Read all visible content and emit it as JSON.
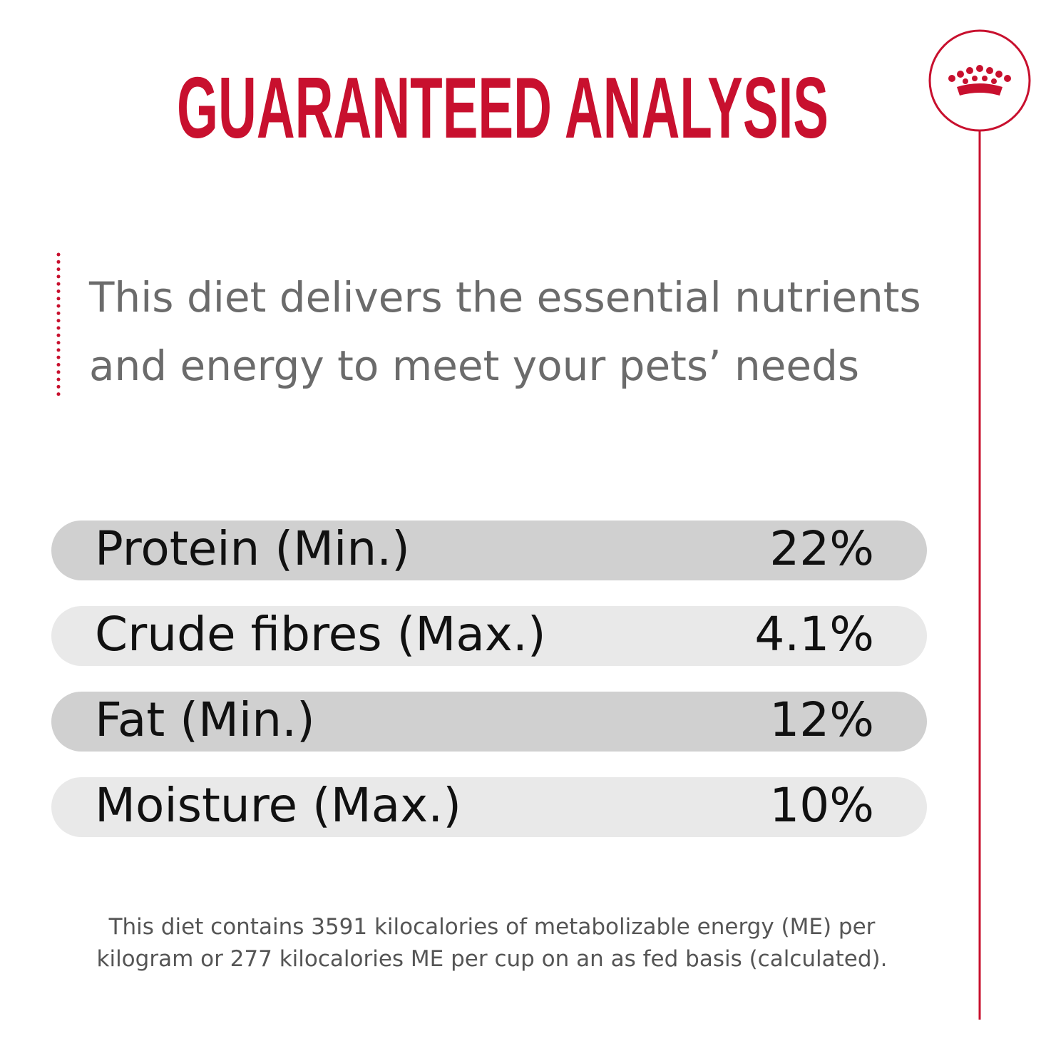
{
  "header": {
    "title": "GUARANTEED ANALYSIS"
  },
  "intro": {
    "lines": [
      "This diet delivers the essential nutrients",
      "and energy to meet your pets’ needs"
    ]
  },
  "table": {
    "rows": [
      [
        "Protein (Min.)",
        "22%"
      ],
      [
        "Crude fibres (Max.)",
        "4.1%"
      ],
      [
        "Fat (Min.)",
        "12%"
      ],
      [
        "Moisture (Max.)",
        "10%"
      ]
    ]
  },
  "footnote": {
    "lines": [
      "This diet contains 3591 kilocalories of metabolizable energy (ME) per",
      "kilogram or 277 kilocalories ME per cup on an as fed basis (calculated)."
    ]
  }
}
